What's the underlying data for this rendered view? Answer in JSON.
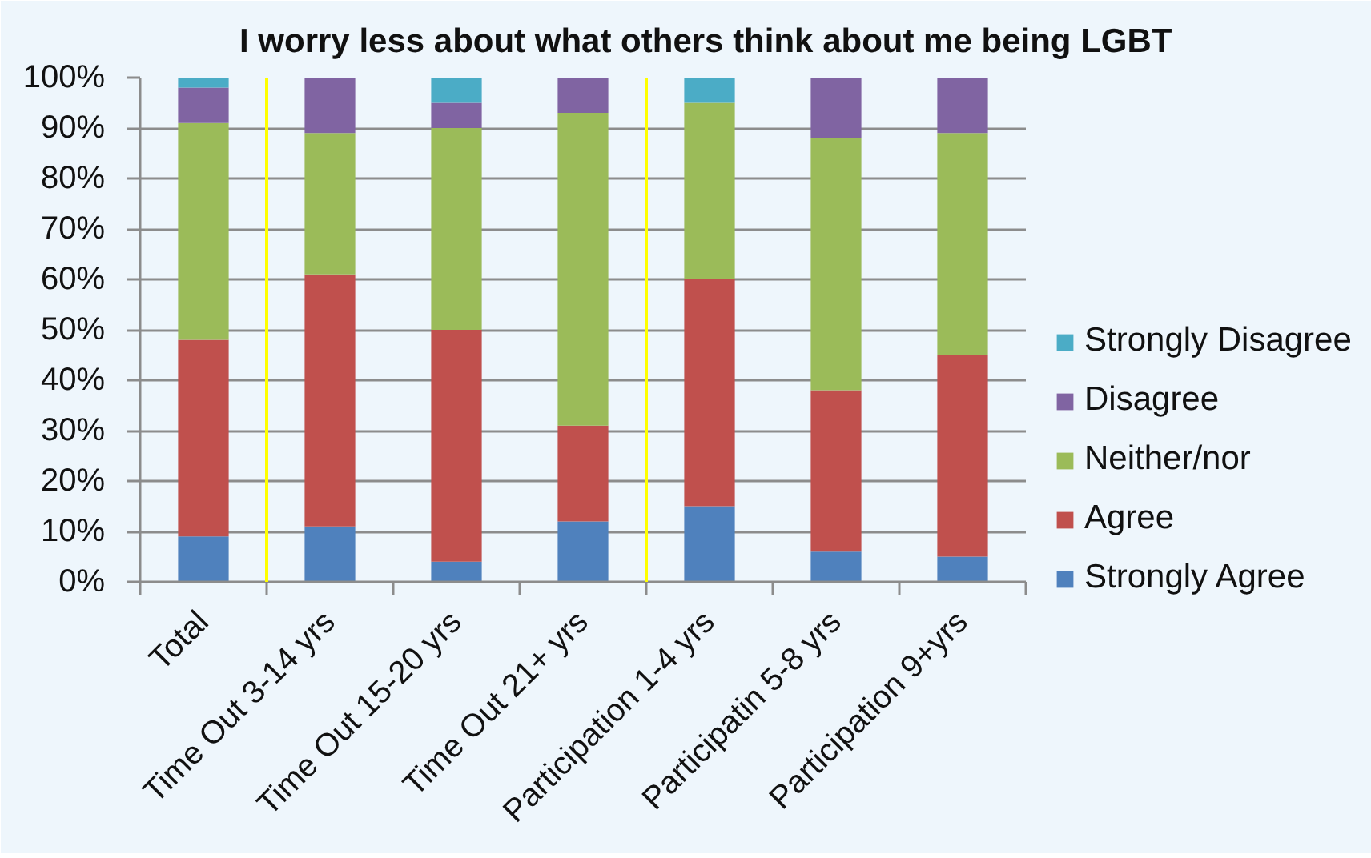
{
  "chart_data": {
    "type": "bar",
    "title": "I worry less about what others think about me being LGBT",
    "categories": [
      "Total",
      "Time Out 3-14 yrs",
      "Time Out 15-20 yrs",
      "Time Out 21+ yrs",
      "Participation 1-4 yrs",
      "Participatin 5-8 yrs",
      "Participation 9+yrs"
    ],
    "series": [
      {
        "name": "Strongly Agree",
        "color": "#4f81bd",
        "values": [
          9,
          11,
          4,
          12,
          15,
          6,
          5
        ]
      },
      {
        "name": "Agree",
        "color": "#c0504d",
        "values": [
          39,
          50,
          46,
          19,
          45,
          32,
          40
        ]
      },
      {
        "name": "Neither/nor",
        "color": "#9bbb59",
        "values": [
          43,
          28,
          40,
          62,
          35,
          50,
          44
        ]
      },
      {
        "name": "Disagree",
        "color": "#8064a2",
        "values": [
          7,
          11,
          5,
          7,
          0,
          12,
          11
        ]
      },
      {
        "name": "Strongly Disagree",
        "color": "#4bacc6",
        "values": [
          2,
          0,
          5,
          0,
          5,
          0,
          0
        ]
      }
    ],
    "stacked": true,
    "ylim": [
      0,
      100
    ],
    "yticks": [
      {
        "value": 0,
        "label": "0%"
      },
      {
        "value": 10,
        "label": "10%"
      },
      {
        "value": 20,
        "label": "20%"
      },
      {
        "value": 30,
        "label": "30%"
      },
      {
        "value": 40,
        "label": "40%"
      },
      {
        "value": 50,
        "label": "50%"
      },
      {
        "value": 60,
        "label": "60%"
      },
      {
        "value": 70,
        "label": "70%"
      },
      {
        "value": 80,
        "label": "80%"
      },
      {
        "value": 90,
        "label": "90%"
      },
      {
        "value": 100,
        "label": "100%"
      }
    ],
    "grid": "y",
    "legend": "right"
  }
}
